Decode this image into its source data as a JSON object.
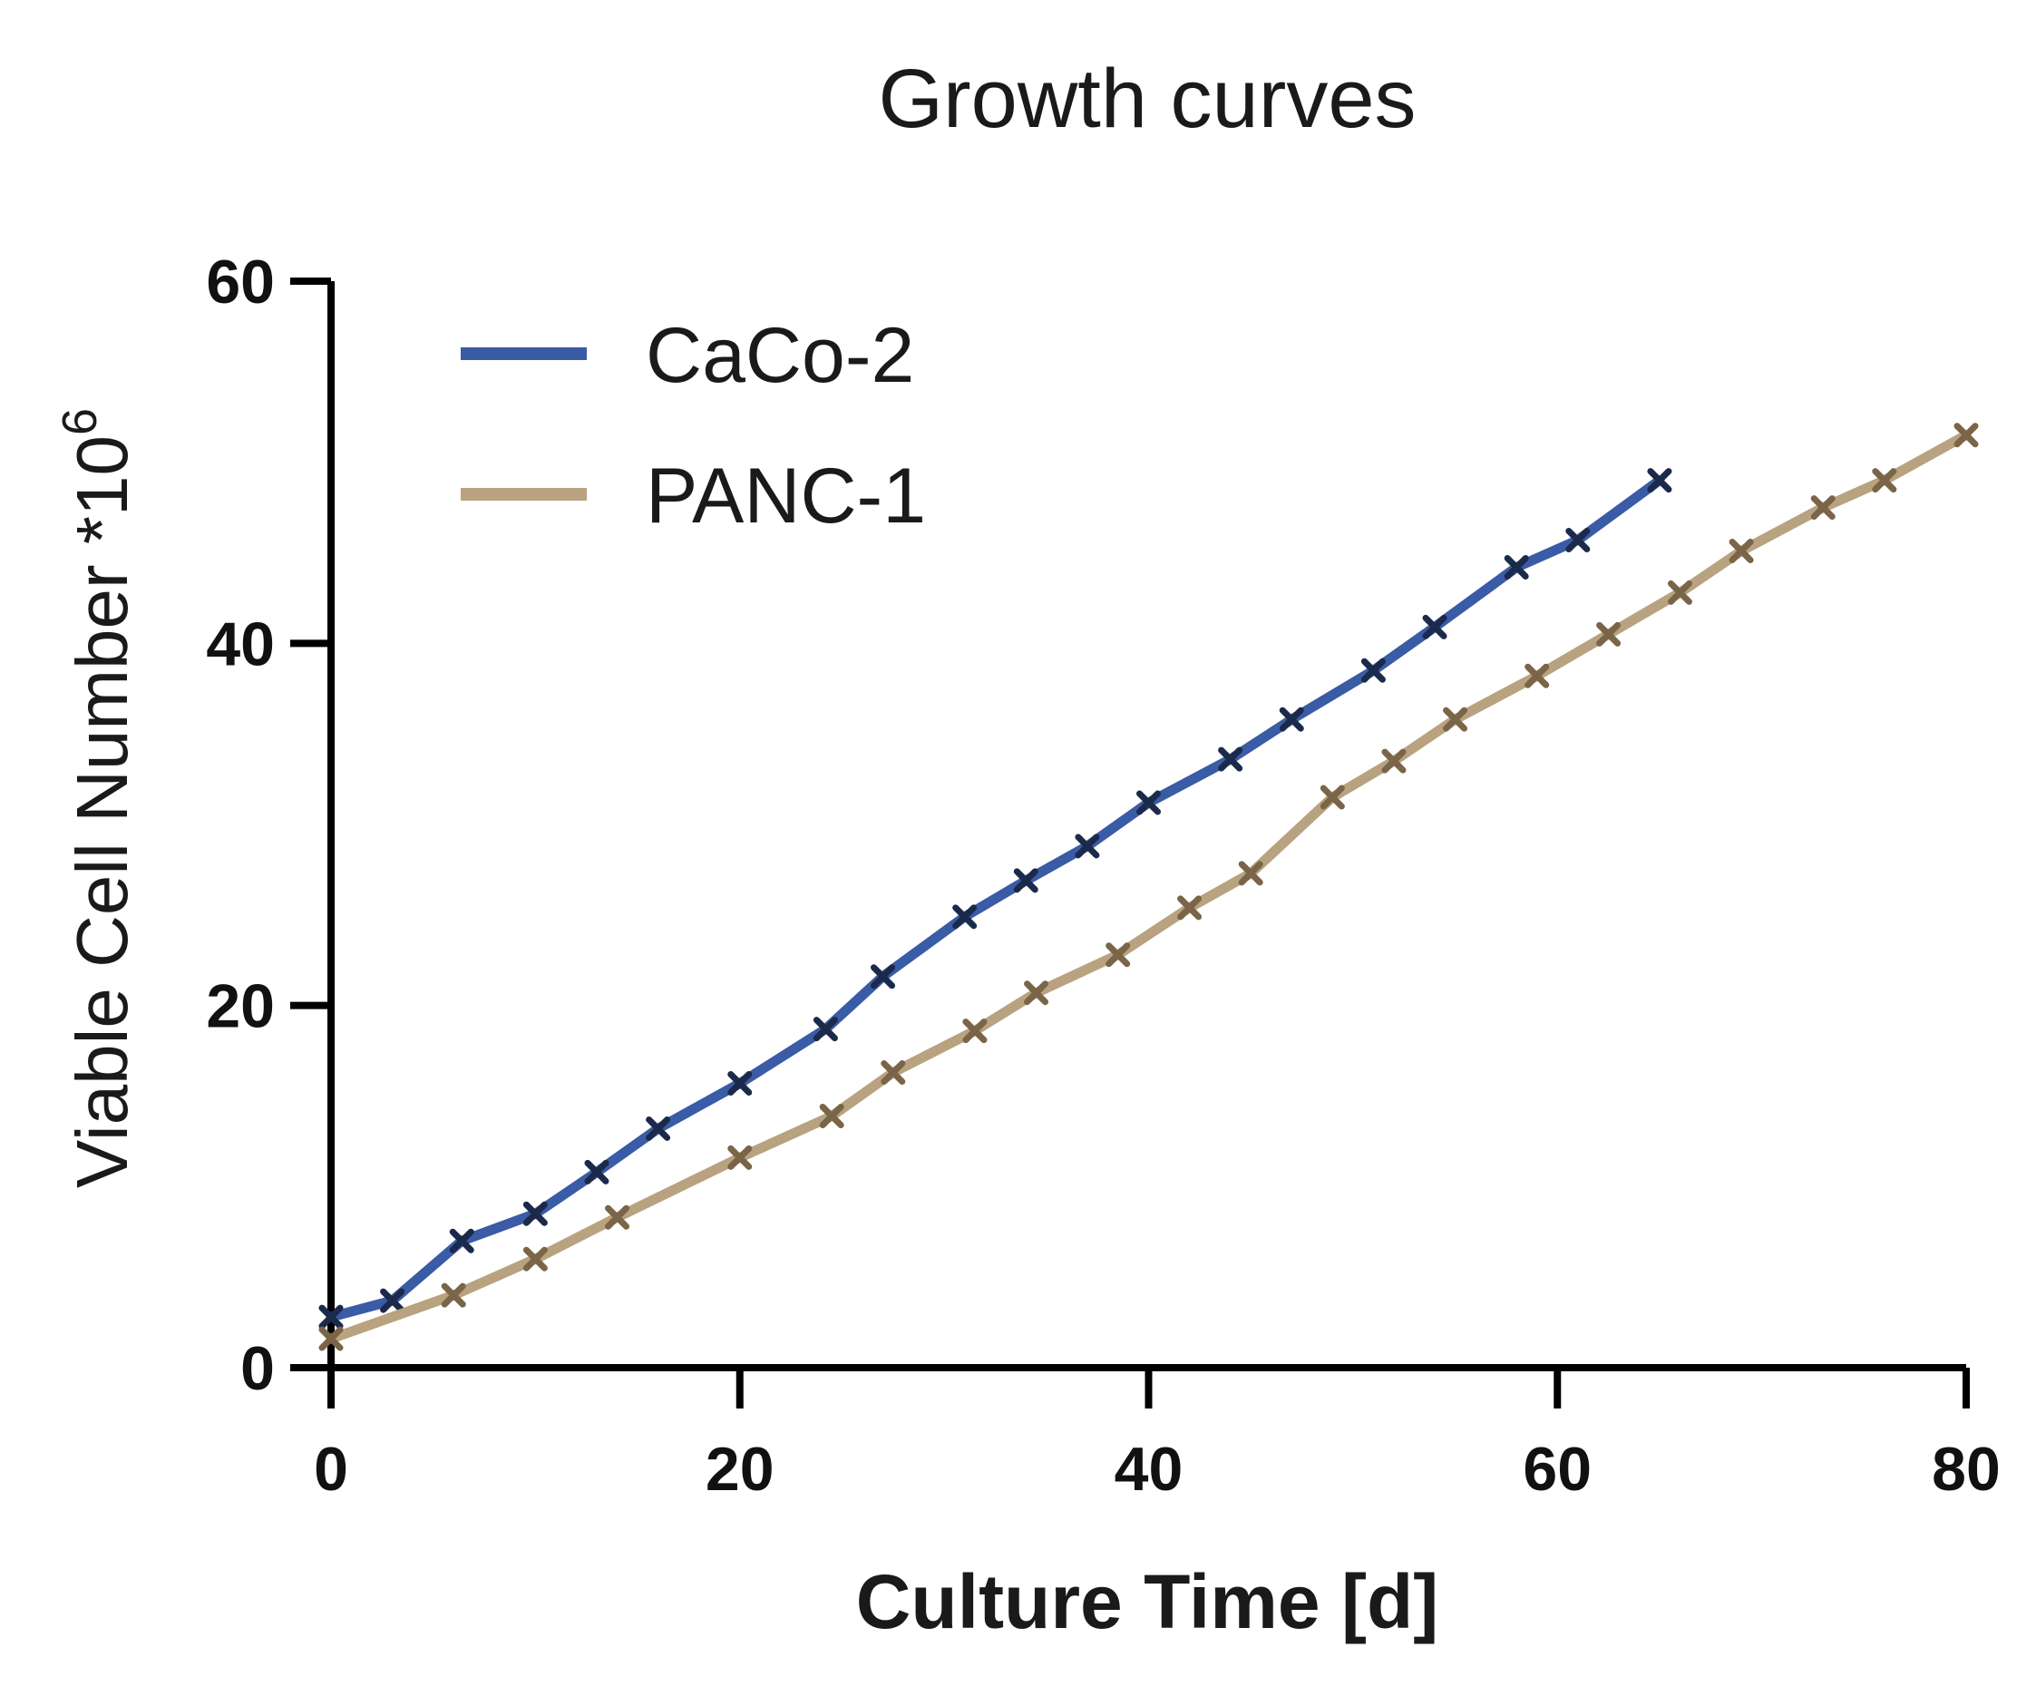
{
  "chart_data": {
    "type": "line",
    "title": "Growth curves",
    "xlabel": "Culture Time [d]",
    "ylabel": "Viable Cell Number *10",
    "ylabel_superscript": "6",
    "xlim": [
      0,
      80
    ],
    "ylim": [
      0,
      60
    ],
    "xticks": [
      0,
      20,
      40,
      60,
      80
    ],
    "yticks": [
      0,
      20,
      40,
      60
    ],
    "grid": false,
    "legend_position": "top-left",
    "series": [
      {
        "name": "CaCo-2",
        "color": "#3a5ba5",
        "marker_color": "#1b2a4a",
        "points": [
          [
            0,
            2.8
          ],
          [
            3,
            3.7
          ],
          [
            6.4,
            7.0
          ],
          [
            10,
            8.5
          ],
          [
            13,
            10.8
          ],
          [
            16,
            13.2
          ],
          [
            20,
            15.7
          ],
          [
            24.2,
            18.7
          ],
          [
            27,
            21.6
          ],
          [
            31,
            24.9
          ],
          [
            34,
            26.9
          ],
          [
            37,
            28.8
          ],
          [
            40,
            31.2
          ],
          [
            44,
            33.6
          ],
          [
            47,
            35.8
          ],
          [
            51,
            38.5
          ],
          [
            54,
            40.9
          ],
          [
            58,
            44.2
          ],
          [
            61,
            45.7
          ],
          [
            65,
            49.0
          ]
        ]
      },
      {
        "name": "PANC-1",
        "color": "#b8a27f",
        "marker_color": "#7a6548",
        "points": [
          [
            0,
            1.6
          ],
          [
            6,
            4.0
          ],
          [
            10,
            6.0
          ],
          [
            14,
            8.3
          ],
          [
            20,
            11.6
          ],
          [
            24.5,
            13.9
          ],
          [
            27.5,
            16.3
          ],
          [
            31.5,
            18.6
          ],
          [
            34.5,
            20.7
          ],
          [
            38.5,
            22.8
          ],
          [
            42,
            25.4
          ],
          [
            45,
            27.3
          ],
          [
            49,
            31.5
          ],
          [
            52,
            33.5
          ],
          [
            55,
            35.8
          ],
          [
            59,
            38.2
          ],
          [
            62.5,
            40.5
          ],
          [
            66,
            42.8
          ],
          [
            69,
            45.1
          ],
          [
            73,
            47.5
          ],
          [
            76,
            49.0
          ],
          [
            80,
            51.5
          ]
        ]
      }
    ]
  }
}
